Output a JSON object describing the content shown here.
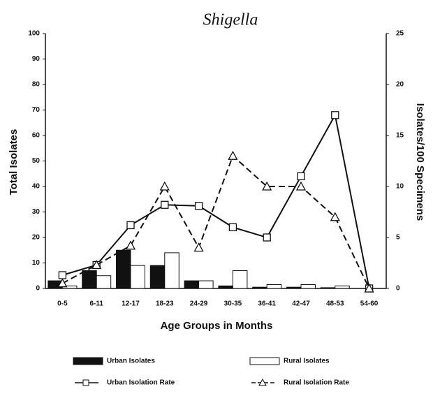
{
  "chart_data": {
    "type": "bar",
    "title": "Shigella",
    "x_label": "Age Groups in Months",
    "y_label": "Total Isolates",
    "y2_label": "Isolates/100 Specimens",
    "categories": [
      "0-5",
      "6-11",
      "12-17",
      "18-23",
      "24-29",
      "30-35",
      "36-41",
      "42-47",
      "48-53",
      "54-60"
    ],
    "ylim": [
      0,
      100
    ],
    "yticks": [
      0,
      10,
      20,
      30,
      40,
      50,
      60,
      70,
      80,
      90,
      100
    ],
    "y2lim": [
      0,
      25
    ],
    "y2ticks": [
      0,
      5,
      10,
      15,
      20,
      25
    ],
    "series": [
      {
        "name": "Urban Isolates",
        "type": "bar",
        "color": "#111111",
        "values": [
          3,
          7,
          15,
          9,
          3,
          1,
          0.5,
          0.5,
          0.3,
          0
        ]
      },
      {
        "name": "Rural Isolates",
        "type": "bar",
        "color": "#ffffff",
        "values": [
          1,
          5,
          9,
          14,
          3,
          7,
          1.5,
          1.5,
          1,
          0
        ]
      },
      {
        "name": "Urban Isolation Rate",
        "type": "line",
        "axis": "y2",
        "color": "#111111",
        "marker": "square",
        "linestyle": "solid",
        "values": [
          1.3,
          2.3,
          6.2,
          8.2,
          8.1,
          6.0,
          5.0,
          11,
          17,
          0
        ]
      },
      {
        "name": "Rural Isolation Rate",
        "type": "line",
        "axis": "y2",
        "color": "#111111",
        "marker": "triangle",
        "linestyle": "dashed",
        "values": [
          0.5,
          2.3,
          4.2,
          10,
          4,
          13,
          10,
          10,
          7,
          0
        ]
      }
    ]
  }
}
